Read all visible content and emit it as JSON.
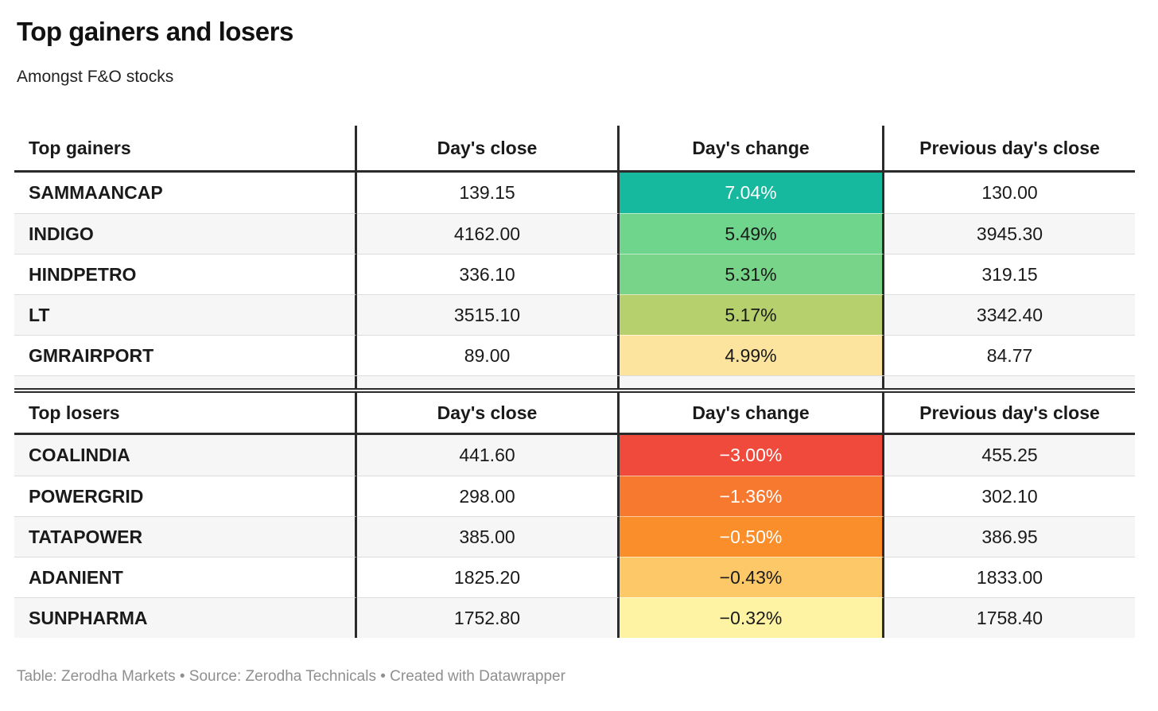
{
  "chart_data": {
    "type": "table",
    "title": "Top gainers and losers",
    "subtitle": "Amongst F&O stocks",
    "footer": "Table: Zerodha Markets • Source: Zerodha Technicals • Created with Datawrapper",
    "layout": {
      "sections": 2,
      "grid": "off",
      "column_alignment": [
        "left",
        "center",
        "center",
        "center"
      ],
      "border_color": "#2b2b2b",
      "alt_row_color": "#f6f6f6"
    },
    "gainers": {
      "headers": {
        "name": "Top gainers",
        "close": "Day's close",
        "change": "Day's change",
        "prev": "Previous day's close"
      },
      "rows": [
        {
          "name": "SAMMAANCAP",
          "close": "139.15",
          "change": "7.04%",
          "change_value": 7.04,
          "prev": "130.00",
          "bg": "#16b89e",
          "fg": "#ffffff"
        },
        {
          "name": "INDIGO",
          "close": "4162.00",
          "change": "5.49%",
          "change_value": 5.49,
          "prev": "3945.30",
          "bg": "#6fd58c",
          "fg": "#1a1a1a"
        },
        {
          "name": "HINDPETRO",
          "close": "336.10",
          "change": "5.31%",
          "change_value": 5.31,
          "prev": "319.15",
          "bg": "#77d488",
          "fg": "#1a1a1a"
        },
        {
          "name": "LT",
          "close": "3515.10",
          "change": "5.17%",
          "change_value": 5.17,
          "prev": "3342.40",
          "bg": "#b5d06c",
          "fg": "#1a1a1a"
        },
        {
          "name": "GMRAIRPORT",
          "close": "89.00",
          "change": "4.99%",
          "change_value": 4.99,
          "prev": "84.77",
          "bg": "#fce49e",
          "fg": "#1a1a1a"
        }
      ]
    },
    "losers": {
      "headers": {
        "name": "Top losers",
        "close": "Day's close",
        "change": "Day's change",
        "prev": "Previous day's close"
      },
      "rows": [
        {
          "name": "COALINDIA",
          "close": "441.60",
          "change": "−3.00%",
          "change_value": -3.0,
          "prev": "455.25",
          "bg": "#ef4a3c",
          "fg": "#ffffff"
        },
        {
          "name": "POWERGRID",
          "close": "298.00",
          "change": "−1.36%",
          "change_value": -1.36,
          "prev": "302.10",
          "bg": "#f7782f",
          "fg": "#ffffff"
        },
        {
          "name": "TATAPOWER",
          "close": "385.00",
          "change": "−0.50%",
          "change_value": -0.5,
          "prev": "386.95",
          "bg": "#f98e2b",
          "fg": "#ffffff"
        },
        {
          "name": "ADANIENT",
          "close": "1825.20",
          "change": "−0.43%",
          "change_value": -0.43,
          "prev": "1833.00",
          "bg": "#fdc968",
          "fg": "#1a1a1a"
        },
        {
          "name": "SUNPHARMA",
          "close": "1752.80",
          "change": "−0.32%",
          "change_value": -0.32,
          "prev": "1758.40",
          "bg": "#fdf3a2",
          "fg": "#1a1a1a"
        }
      ]
    }
  }
}
